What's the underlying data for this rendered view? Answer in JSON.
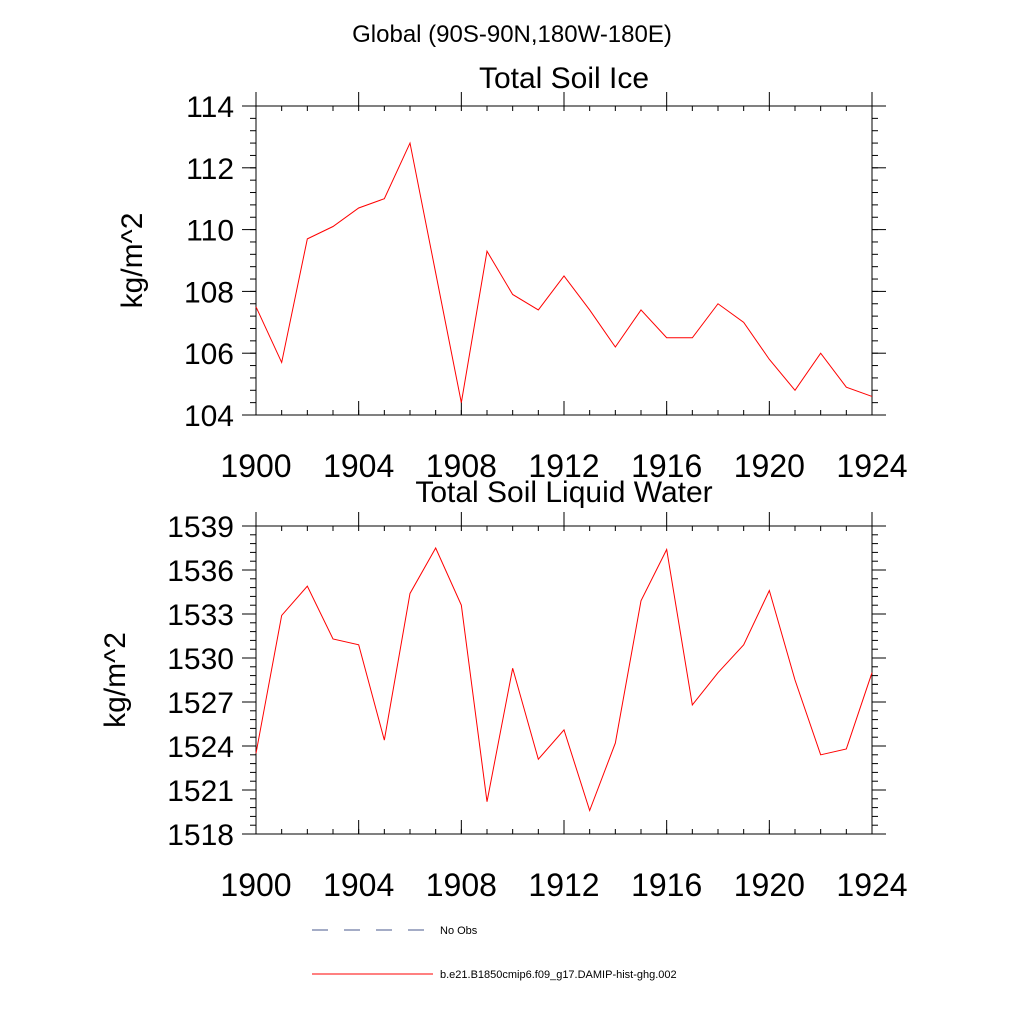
{
  "figure": {
    "title": "Global (90S-90N,180W-180E)"
  },
  "chart_data": [
    {
      "type": "line",
      "title": "Total Soil Ice",
      "ylabel": "kg/m^2",
      "xlabel": "",
      "xlim": [
        1900,
        1924
      ],
      "ylim": [
        104,
        114
      ],
      "xticks": [
        1900,
        1904,
        1908,
        1912,
        1916,
        1920,
        1924
      ],
      "yticks": [
        104,
        106,
        108,
        110,
        112,
        114
      ],
      "grid": false,
      "series": [
        {
          "name": "b.e21.B1850cmip6.f09_g17.DAMIP-hist-ghg.002",
          "color": "#ff0000",
          "x": [
            1900,
            1901,
            1902,
            1903,
            1904,
            1905,
            1906,
            1907,
            1908,
            1909,
            1910,
            1911,
            1912,
            1913,
            1914,
            1915,
            1916,
            1917,
            1918,
            1919,
            1920,
            1921,
            1922,
            1923,
            1924
          ],
          "y": [
            107.5,
            105.7,
            109.7,
            110.1,
            110.7,
            111.0,
            112.8,
            108.6,
            104.4,
            109.3,
            107.9,
            107.4,
            108.5,
            107.4,
            106.2,
            107.4,
            106.5,
            106.5,
            107.6,
            107.0,
            105.8,
            104.8,
            106.0,
            104.9,
            104.6
          ]
        }
      ]
    },
    {
      "type": "line",
      "title": "Total Soil Liquid Water",
      "ylabel": "kg/m^2",
      "xlabel": "",
      "xlim": [
        1900,
        1924
      ],
      "ylim": [
        1518,
        1539
      ],
      "xticks": [
        1900,
        1904,
        1908,
        1912,
        1916,
        1920,
        1924
      ],
      "yticks": [
        1518,
        1521,
        1524,
        1527,
        1530,
        1533,
        1536,
        1539
      ],
      "grid": false,
      "series": [
        {
          "name": "b.e21.B1850cmip6.f09_g17.DAMIP-hist-ghg.002",
          "color": "#ff0000",
          "x": [
            1900,
            1901,
            1902,
            1903,
            1904,
            1905,
            1906,
            1907,
            1908,
            1909,
            1910,
            1911,
            1912,
            1913,
            1914,
            1915,
            1916,
            1917,
            1918,
            1919,
            1920,
            1921,
            1922,
            1923,
            1924
          ],
          "y": [
            1523.5,
            1532.9,
            1534.9,
            1531.3,
            1530.9,
            1524.4,
            1534.4,
            1537.5,
            1533.6,
            1520.2,
            1529.3,
            1523.1,
            1525.1,
            1519.6,
            1524.2,
            1533.9,
            1537.4,
            1526.8,
            1529.0,
            1530.9,
            1534.6,
            1528.5,
            1523.4,
            1523.8,
            1529.0
          ]
        }
      ]
    }
  ],
  "legend": {
    "placement": "bottom",
    "items": [
      {
        "label": "No Obs",
        "color": "#4a5a8c",
        "style": "dashed"
      },
      {
        "label": "b.e21.B1850cmip6.f09_g17.DAMIP-hist-ghg.002",
        "color": "#ff0000",
        "style": "solid"
      }
    ]
  }
}
